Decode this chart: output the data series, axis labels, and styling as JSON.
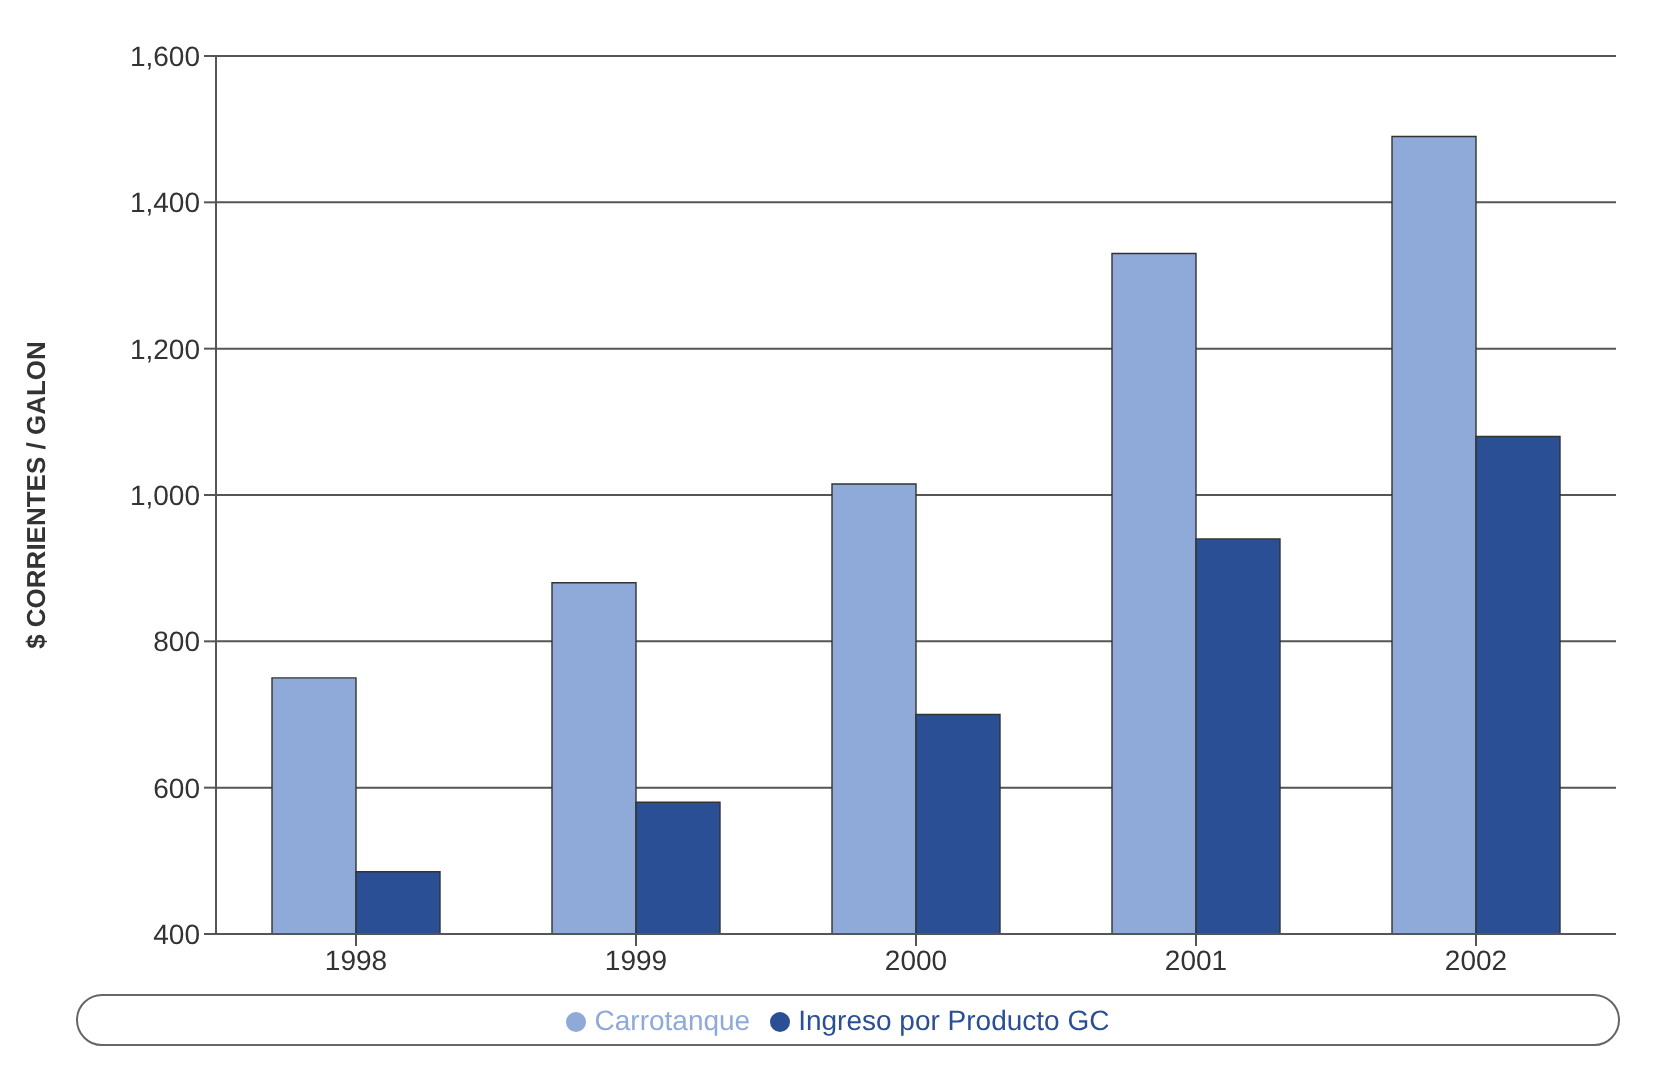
{
  "chart_data": {
    "type": "bar",
    "ylabel": "$ CORRIENTES / GALON",
    "categories": [
      "1998",
      "1999",
      "2000",
      "2001",
      "2002"
    ],
    "series": [
      {
        "name": "Carrotanque",
        "color": "#8fa9d8",
        "values": [
          750,
          880,
          1015,
          1330,
          1490
        ]
      },
      {
        "name": "Ingreso por Producto GC",
        "color": "#2a4f94",
        "values": [
          485,
          580,
          700,
          940,
          1080
        ]
      }
    ],
    "ylim": [
      400,
      1600
    ],
    "yticks": [
      400,
      600,
      800,
      {
        "value": 1000,
        "label": "1,000"
      },
      {
        "value": 1200,
        "label": "1,200"
      },
      {
        "value": 1400,
        "label": "1,400"
      },
      {
        "value": 1600,
        "label": "1,600"
      }
    ],
    "grid": "y",
    "legend": "bottom"
  }
}
